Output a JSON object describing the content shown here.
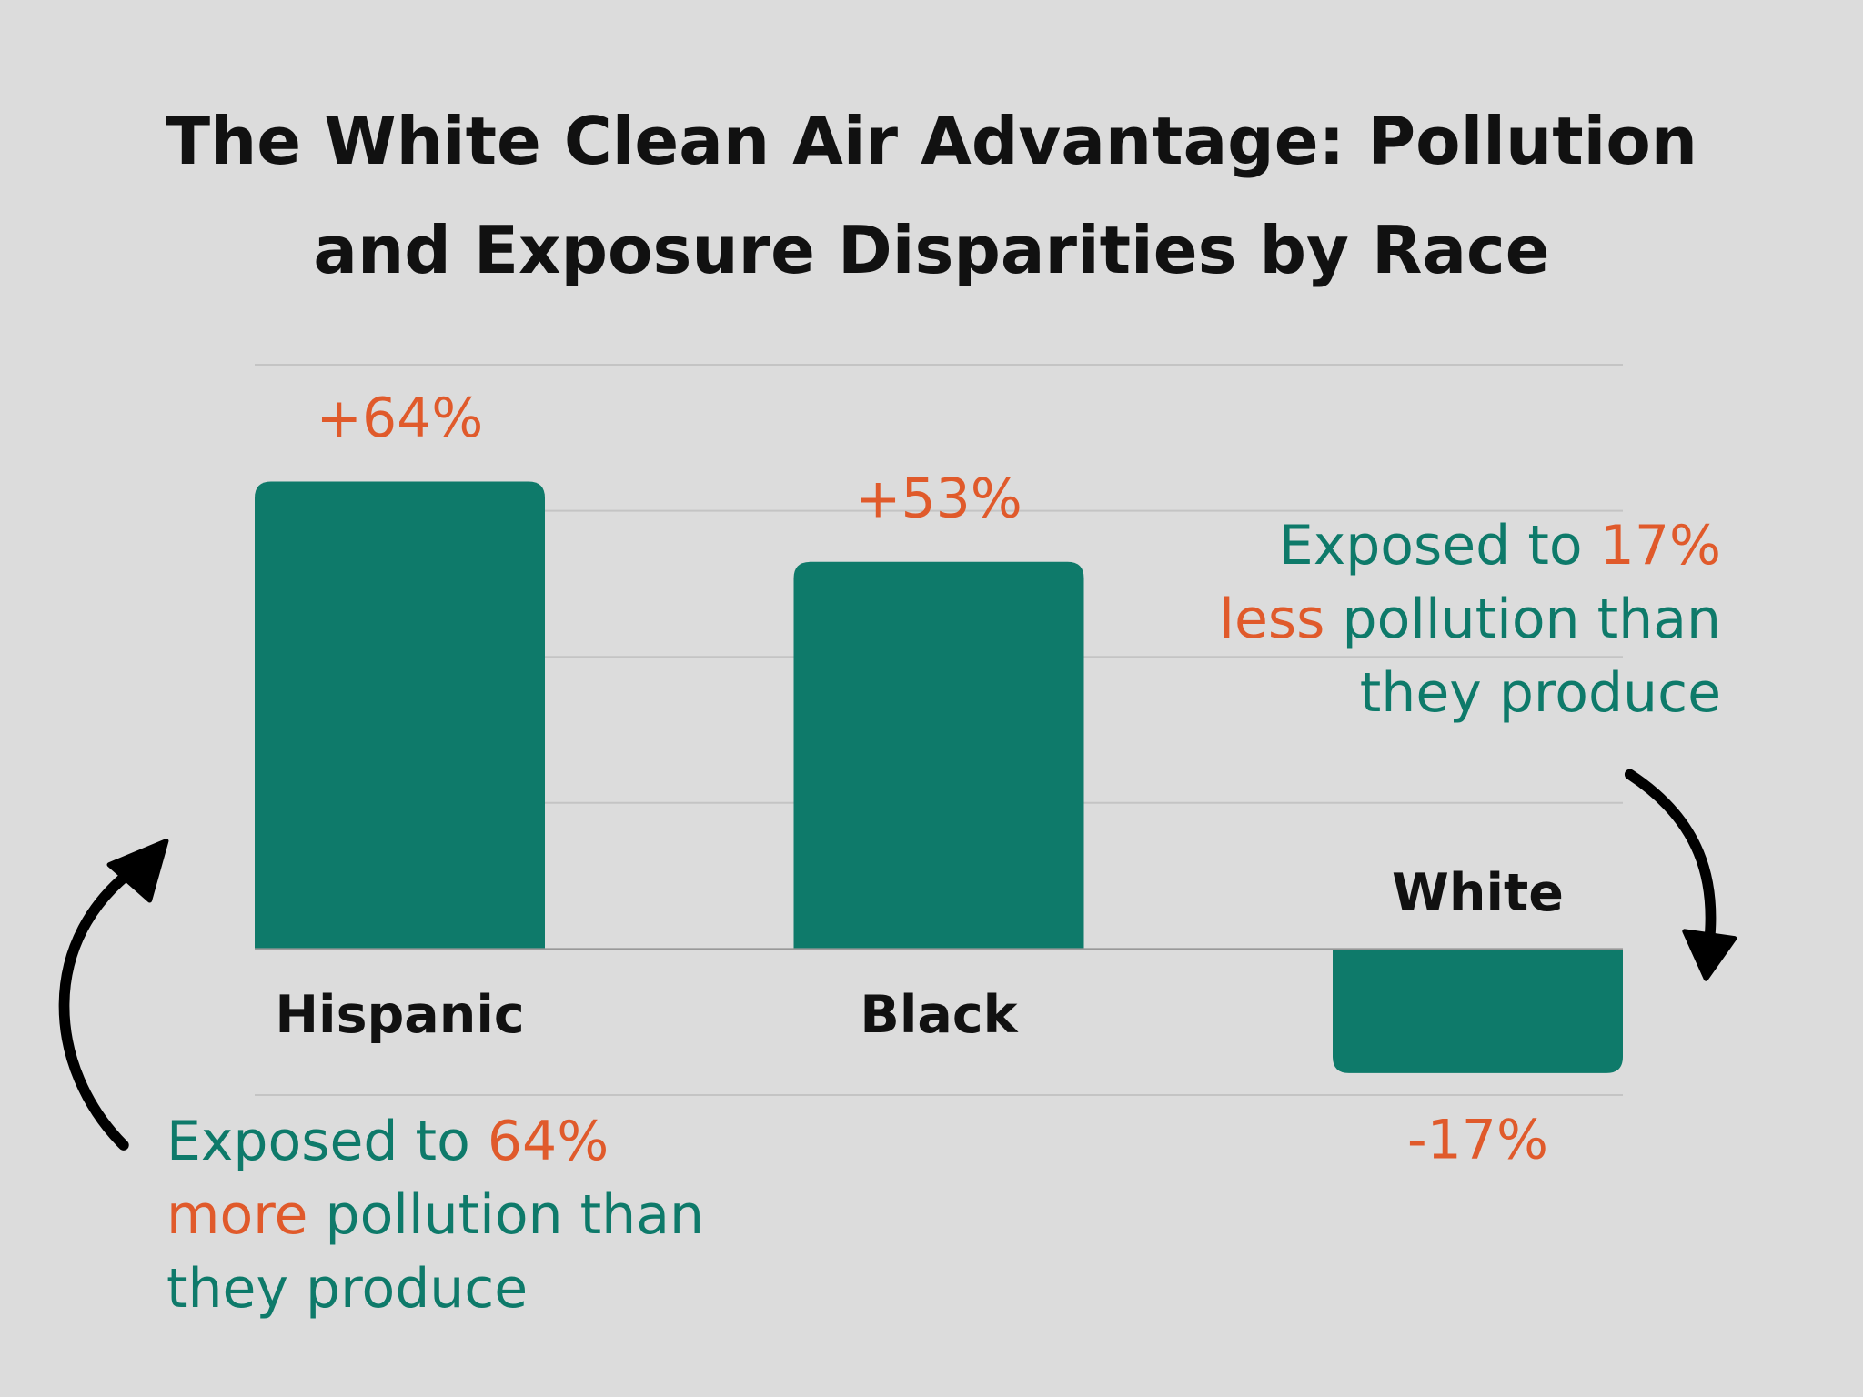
{
  "chart_data": {
    "type": "bar",
    "title": "The White Clean Air Advantage: Pollution and Exposure Disparities by Race",
    "categories": [
      "Hispanic",
      "Black",
      "White"
    ],
    "values": [
      64,
      53,
      -17
    ],
    "value_labels": [
      "+64%",
      "+53%",
      "-17%"
    ],
    "color": "#0e7a6a",
    "label_color": "#e05a2b",
    "ylim": [
      -20,
      80
    ],
    "yticks": [
      -20,
      0,
      20,
      40,
      60,
      80
    ],
    "grid": true,
    "annotations": [
      {
        "lines": [
          [
            {
              "text": "Exposed to ",
              "color": "#0e7a6a"
            },
            {
              "text": "64%",
              "color": "#e05a2b"
            }
          ],
          [
            {
              "text": "more",
              "color": "#e05a2b"
            },
            {
              "text": " pollution than",
              "color": "#0e7a6a"
            }
          ],
          [
            {
              "text": "they produce",
              "color": "#0e7a6a"
            }
          ]
        ]
      },
      {
        "lines": [
          [
            {
              "text": "Exposed to ",
              "color": "#0e7a6a"
            },
            {
              "text": "17%",
              "color": "#e05a2b"
            }
          ],
          [
            {
              "text": "less",
              "color": "#e05a2b"
            },
            {
              "text": " pollution than",
              "color": "#0e7a6a"
            }
          ],
          [
            {
              "text": "they produce",
              "color": "#0e7a6a"
            }
          ]
        ]
      }
    ]
  }
}
